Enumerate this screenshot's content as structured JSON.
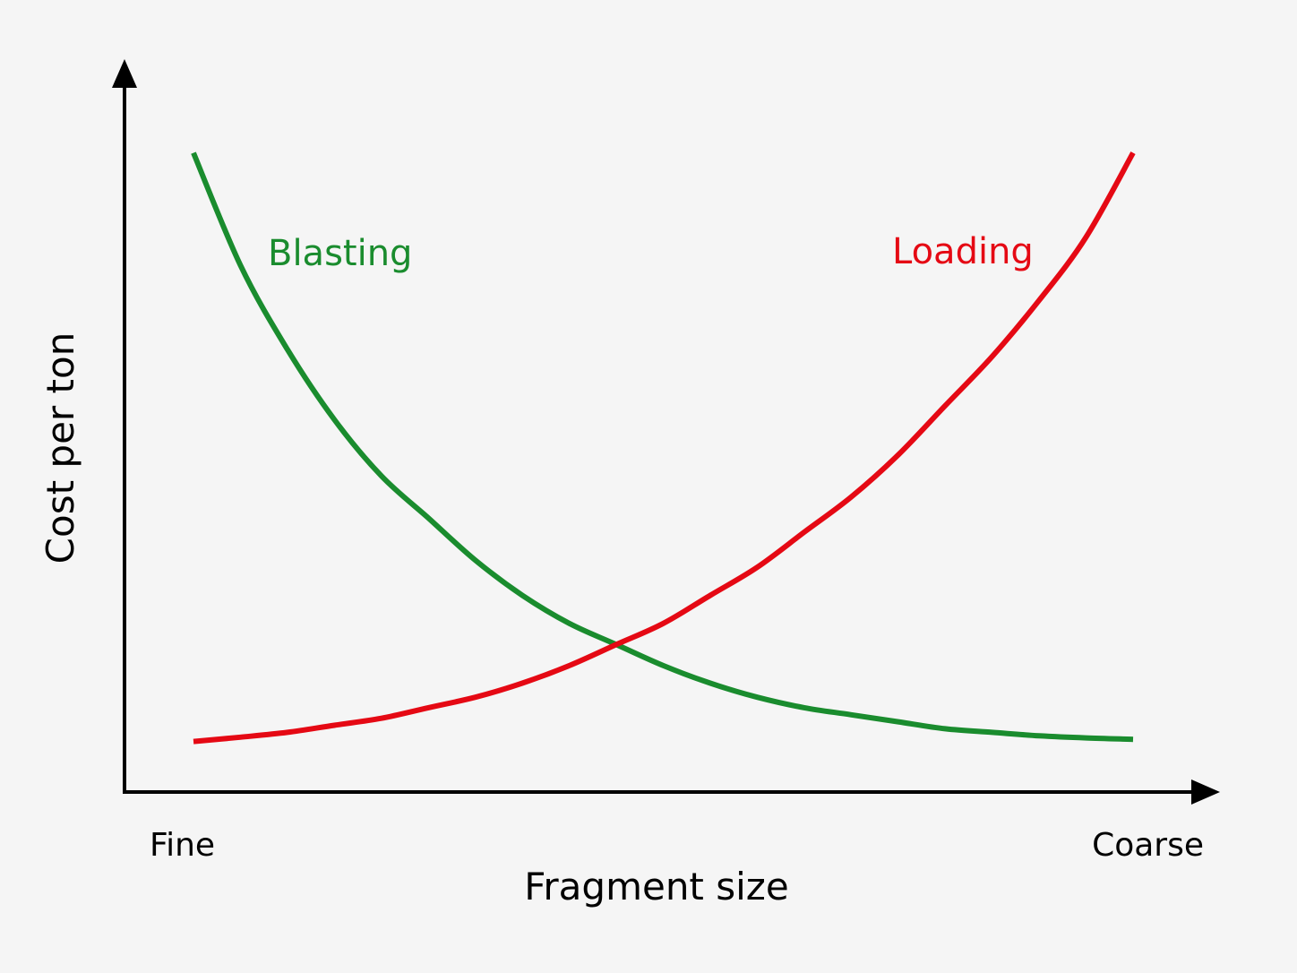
{
  "chart_data": {
    "type": "line",
    "title": "",
    "xlabel": "Fragment size",
    "ylabel": "Cost per ton",
    "x_tick_labels": {
      "min": "Fine",
      "max": "Coarse"
    },
    "xlim": [
      0,
      1
    ],
    "ylim": [
      0,
      1
    ],
    "grid": false,
    "legend": "none",
    "series": [
      {
        "name": "Blasting",
        "color": "#1a8c2e",
        "x": [
          0.0,
          0.05,
          0.1,
          0.15,
          0.2,
          0.25,
          0.3,
          0.35,
          0.4,
          0.45,
          0.5,
          0.55,
          0.6,
          0.65,
          0.7,
          0.75,
          0.8,
          0.85,
          0.9,
          0.95,
          1.0
        ],
        "y": [
          0.91,
          0.75,
          0.63,
          0.53,
          0.45,
          0.39,
          0.33,
          0.28,
          0.24,
          0.21,
          0.18,
          0.155,
          0.135,
          0.12,
          0.11,
          0.1,
          0.09,
          0.085,
          0.08,
          0.077,
          0.075
        ]
      },
      {
        "name": "Loading",
        "color": "#e50914",
        "x": [
          0.0,
          0.05,
          0.1,
          0.15,
          0.2,
          0.25,
          0.3,
          0.35,
          0.4,
          0.45,
          0.5,
          0.55,
          0.6,
          0.65,
          0.7,
          0.75,
          0.8,
          0.85,
          0.9,
          0.95,
          1.0
        ],
        "y": [
          0.072,
          0.078,
          0.085,
          0.095,
          0.105,
          0.12,
          0.135,
          0.155,
          0.18,
          0.21,
          0.24,
          0.28,
          0.32,
          0.37,
          0.42,
          0.48,
          0.55,
          0.62,
          0.7,
          0.79,
          0.91
        ]
      }
    ]
  }
}
